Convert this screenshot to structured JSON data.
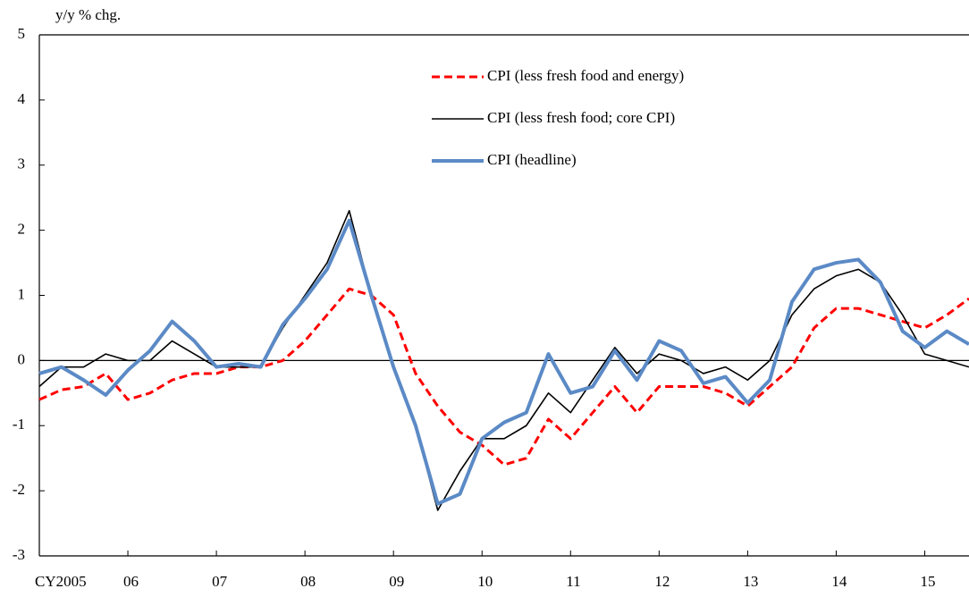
{
  "chart_data": {
    "type": "line",
    "y_axis_label": "y/y % chg.",
    "categories": [
      "CY2005",
      null,
      null,
      null,
      "06",
      null,
      null,
      null,
      "07",
      null,
      null,
      null,
      "08",
      null,
      null,
      null,
      "09",
      null,
      null,
      null,
      "10",
      null,
      null,
      null,
      "11",
      null,
      null,
      null,
      "12",
      null,
      null,
      null,
      "13",
      null,
      null,
      null,
      "14",
      null,
      null,
      null,
      "15",
      null,
      null
    ],
    "series": [
      {
        "name": "CPI (less fresh food and energy)",
        "color": "#ff0000",
        "dash": true,
        "width": 3,
        "values": [
          -0.6,
          -0.45,
          -0.4,
          -0.2,
          -0.6,
          -0.5,
          -0.3,
          -0.2,
          -0.2,
          -0.1,
          -0.1,
          0.0,
          0.3,
          0.7,
          1.1,
          1.0,
          0.7,
          -0.2,
          -0.7,
          -1.1,
          -1.3,
          -1.6,
          -1.5,
          -0.9,
          -1.2,
          -0.8,
          -0.4,
          -0.8,
          -0.4,
          -0.4,
          -0.4,
          -0.5,
          -0.7,
          -0.4,
          -0.1,
          0.5,
          0.8,
          0.8,
          0.7,
          0.6,
          0.5,
          0.7,
          0.95
        ]
      },
      {
        "name": "CPI (less fresh food; core CPI)",
        "color": "#000000",
        "dash": false,
        "width": 1.6,
        "values": [
          -0.4,
          -0.1,
          -0.1,
          0.1,
          0.0,
          0.0,
          0.3,
          0.1,
          -0.1,
          -0.1,
          -0.1,
          0.5,
          1.0,
          1.5,
          2.3,
          1.0,
          -0.1,
          -1.0,
          -2.3,
          -1.7,
          -1.2,
          -1.2,
          -1.0,
          -0.5,
          -0.8,
          -0.3,
          0.2,
          -0.2,
          0.1,
          0.0,
          -0.2,
          -0.1,
          -0.3,
          0.0,
          0.7,
          1.1,
          1.3,
          1.4,
          1.2,
          0.7,
          0.1,
          0.0,
          -0.1
        ]
      },
      {
        "name": "CPI (headline)",
        "color": "#5b8ac6",
        "dash": false,
        "width": 4,
        "values": [
          -0.2,
          -0.1,
          -0.3,
          -0.53,
          -0.15,
          0.15,
          0.6,
          0.3,
          -0.1,
          -0.05,
          -0.1,
          0.55,
          0.95,
          1.4,
          2.15,
          1.0,
          -0.1,
          -1.0,
          -2.2,
          -2.05,
          -1.2,
          -0.95,
          -0.8,
          0.1,
          -0.5,
          -0.4,
          0.15,
          -0.3,
          0.3,
          0.15,
          -0.35,
          -0.25,
          -0.65,
          -0.3,
          0.9,
          1.4,
          1.5,
          1.55,
          1.2,
          0.45,
          0.2,
          0.45,
          0.25
        ]
      }
    ],
    "ylim": [
      -3,
      5
    ],
    "yticks": [
      -3,
      -2,
      -1,
      0,
      1,
      2,
      3,
      4,
      5
    ]
  }
}
